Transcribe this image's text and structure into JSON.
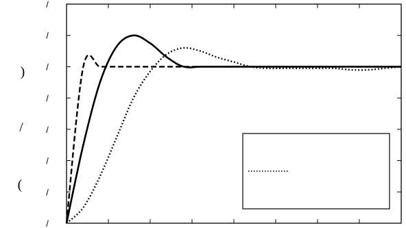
{
  "chart_data": {
    "type": "line",
    "title": "",
    "xlabel": "",
    "ylabel_glyphs": [
      "(",
      "/",
      ")"
    ],
    "y_tick_labels": [
      "/",
      "/",
      "/",
      "/",
      "/",
      "/",
      "/",
      "/"
    ],
    "x": [
      0.0,
      0.05,
      0.1,
      0.15,
      0.2,
      0.25,
      0.3,
      0.35,
      0.4,
      0.45,
      0.5,
      0.55,
      0.6,
      0.65,
      0.7,
      0.75,
      0.8,
      0.85,
      0.9,
      0.95,
      1.0
    ],
    "xlim": [
      0,
      1
    ],
    "ylim": [
      0,
      1.4
    ],
    "grid": false,
    "legend_position": "lower-right",
    "series": [
      {
        "style": "dashed",
        "values": [
          0.0,
          1.0,
          1.0,
          1.0,
          1.0,
          1.0,
          1.0,
          1.0,
          1.0,
          1.0,
          1.0,
          1.0,
          1.0,
          1.0,
          1.0,
          1.0,
          1.0,
          1.0,
          1.0,
          1.0,
          1.0
        ]
      },
      {
        "style": "solid",
        "values": [
          0.0,
          0.5,
          0.9,
          1.13,
          1.2,
          1.15,
          1.06,
          1.0,
          1.0,
          1.0,
          1.0,
          1.0,
          1.0,
          1.0,
          1.0,
          1.0,
          1.0,
          1.0,
          1.0,
          1.0,
          1.0
        ]
      },
      {
        "style": "dotted",
        "values": [
          0.0,
          0.1,
          0.3,
          0.55,
          0.8,
          0.97,
          1.08,
          1.12,
          1.1,
          1.06,
          1.03,
          1.0,
          0.99,
          0.99,
          0.99,
          0.99,
          0.99,
          0.98,
          0.98,
          0.99,
          1.0
        ]
      }
    ]
  }
}
